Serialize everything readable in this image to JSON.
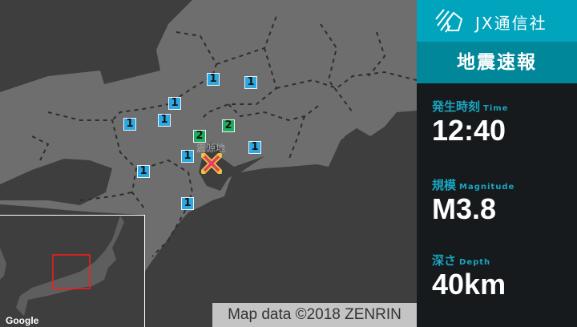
{
  "brand": {
    "name": "JX通信社",
    "logo_icon": "jx-logo-icon"
  },
  "banner": {
    "title": "地震速報"
  },
  "fields": {
    "time": {
      "label": "発生時刻",
      "sub": "Time",
      "value": "12:40"
    },
    "magnitude": {
      "label": "規模",
      "sub": "Magnitude",
      "value": "M3.8"
    },
    "depth": {
      "label": "深さ",
      "sub": "Depth",
      "value": "40km"
    }
  },
  "map": {
    "epicenter_label": "震源地",
    "markers": [
      {
        "intensity": "1"
      },
      {
        "intensity": "1"
      },
      {
        "intensity": "1"
      },
      {
        "intensity": "1"
      },
      {
        "intensity": "1"
      },
      {
        "intensity": "2"
      },
      {
        "intensity": "2"
      },
      {
        "intensity": "1"
      },
      {
        "intensity": "1"
      },
      {
        "intensity": "1"
      },
      {
        "intensity": "1"
      }
    ],
    "attribution": "Map data ©2018 ZENRIN",
    "inset_logo": "Google"
  },
  "colors": {
    "intensity_1": "#2ea8e0",
    "intensity_2": "#1fae5f",
    "brand": "#00a5bd",
    "banner": "#008799",
    "label": "#1aa5c0"
  }
}
